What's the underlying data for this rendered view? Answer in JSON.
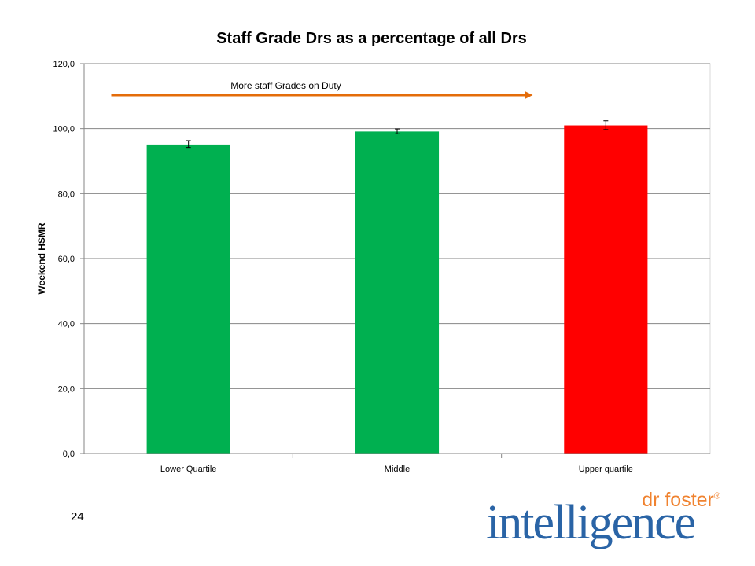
{
  "slide": {
    "page_number": "24",
    "logo": {
      "brand_small": "dr foster",
      "registered_mark": "®",
      "brand_big": "intelligence"
    }
  },
  "chart_data": {
    "type": "bar",
    "title": "Staff Grade Drs as a percentage of all Drs",
    "xlabel": "",
    "ylabel": "Weekend HSMR",
    "ylim": [
      0,
      120
    ],
    "yticks": [
      "0,0",
      "20,0",
      "40,0",
      "60,0",
      "80,0",
      "100,0",
      "120,0"
    ],
    "categories": [
      "Lower Quartile",
      "Middle",
      "Upper quartile"
    ],
    "values": [
      95.1,
      99.1,
      101.0
    ],
    "error_low": [
      94.2,
      98.4,
      99.7
    ],
    "error_high": [
      96.3,
      99.9,
      102.4
    ],
    "bar_colors": [
      "#00b050",
      "#00b050",
      "#ff0000"
    ],
    "grid": true,
    "annotation": {
      "text": "More staff Grades on Duty",
      "arrow_color": "#e46c0a",
      "arrow_from": 0.13,
      "arrow_to": 2.15
    }
  }
}
